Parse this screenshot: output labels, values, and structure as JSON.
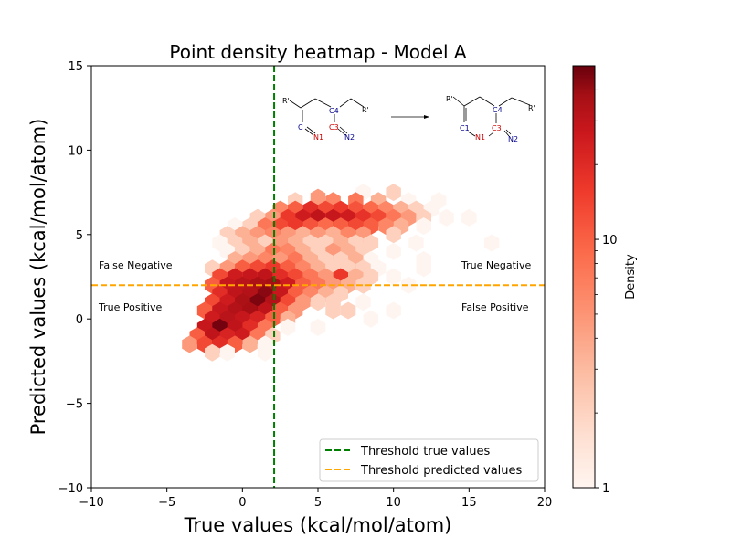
{
  "chart_data": {
    "type": "heatmap",
    "subtype": "hexbin",
    "title": "Point density heatmap  - Model A",
    "xlabel": "True values (kcal/mol/atom)",
    "ylabel": "Predicted values (kcal/mol/atom)",
    "xlim": [
      -10,
      20
    ],
    "ylim": [
      -10,
      15
    ],
    "x_ticks": [
      -10,
      -5,
      0,
      5,
      10,
      15,
      20
    ],
    "y_ticks": [
      -10,
      -5,
      0,
      5,
      10,
      15
    ],
    "x_tick_labels": [
      "−10",
      "−5",
      "0",
      "5",
      "10",
      "15",
      "20"
    ],
    "y_tick_labels": [
      "−10",
      "−5",
      "0",
      "5",
      "10",
      "15"
    ],
    "threshold_true": 2.1,
    "threshold_predicted": 2.0,
    "quadrant_labels": {
      "top_left": "False Negative",
      "bottom_left": "True Positive",
      "top_right": "True Negative",
      "bottom_right": "False Positive"
    },
    "legend": [
      {
        "label": "Threshold true values",
        "color": "#008000",
        "style": "dashed"
      },
      {
        "label": "Threshold predicted values",
        "color": "#FFA500",
        "style": "dashed"
      }
    ],
    "legend_position": "lower-right",
    "colorbar": {
      "label": "Density",
      "scale": "log",
      "min": 1,
      "max": 50,
      "tick_values": [
        1,
        10
      ],
      "tick_labels": [
        "1",
        "10"
      ],
      "colormap": "Reds"
    },
    "hexbins": [
      {
        "x": 8.0,
        "y": 7.5,
        "density": 1
      },
      {
        "x": 10.0,
        "y": 7.5,
        "density": 2
      },
      {
        "x": 11.0,
        "y": 7.0,
        "density": 1
      },
      {
        "x": 13.0,
        "y": 7.0,
        "density": 1
      },
      {
        "x": 3.5,
        "y": 7.0,
        "density": 2
      },
      {
        "x": 5.0,
        "y": 7.2,
        "density": 4
      },
      {
        "x": 6.0,
        "y": 7.0,
        "density": 5
      },
      {
        "x": 7.5,
        "y": 7.0,
        "density": 6
      },
      {
        "x": 9.0,
        "y": 7.0,
        "density": 3
      },
      {
        "x": 2.5,
        "y": 6.5,
        "density": 5
      },
      {
        "x": 3.5,
        "y": 6.5,
        "density": 8
      },
      {
        "x": 4.5,
        "y": 6.5,
        "density": 14
      },
      {
        "x": 5.5,
        "y": 6.5,
        "density": 10
      },
      {
        "x": 6.5,
        "y": 6.5,
        "density": 12
      },
      {
        "x": 7.5,
        "y": 6.5,
        "density": 9
      },
      {
        "x": 8.5,
        "y": 6.5,
        "density": 7
      },
      {
        "x": 9.5,
        "y": 6.5,
        "density": 5
      },
      {
        "x": 10.5,
        "y": 6.5,
        "density": 3
      },
      {
        "x": 11.5,
        "y": 6.5,
        "density": 2
      },
      {
        "x": 12.5,
        "y": 6.5,
        "density": 1
      },
      {
        "x": 1.0,
        "y": 6.0,
        "density": 2
      },
      {
        "x": 2.0,
        "y": 6.0,
        "density": 4
      },
      {
        "x": 3.0,
        "y": 6.0,
        "density": 12
      },
      {
        "x": 4.0,
        "y": 6.0,
        "density": 18
      },
      {
        "x": 5.0,
        "y": 6.0,
        "density": 22
      },
      {
        "x": 6.0,
        "y": 6.0,
        "density": 20
      },
      {
        "x": 7.0,
        "y": 6.0,
        "density": 18
      },
      {
        "x": 8.0,
        "y": 6.0,
        "density": 13
      },
      {
        "x": 9.0,
        "y": 6.0,
        "density": 10
      },
      {
        "x": 10.0,
        "y": 6.0,
        "density": 6
      },
      {
        "x": 11.0,
        "y": 6.0,
        "density": 4
      },
      {
        "x": 12.0,
        "y": 6.0,
        "density": 2
      },
      {
        "x": 13.5,
        "y": 6.0,
        "density": 1
      },
      {
        "x": 15.0,
        "y": 6.0,
        "density": 1
      },
      {
        "x": -0.5,
        "y": 5.5,
        "density": 1
      },
      {
        "x": 0.5,
        "y": 5.5,
        "density": 2
      },
      {
        "x": 1.5,
        "y": 5.5,
        "density": 6
      },
      {
        "x": 2.5,
        "y": 5.5,
        "density": 10
      },
      {
        "x": 3.5,
        "y": 5.5,
        "density": 12
      },
      {
        "x": 4.5,
        "y": 5.5,
        "density": 9
      },
      {
        "x": 5.5,
        "y": 5.5,
        "density": 7
      },
      {
        "x": 6.5,
        "y": 5.5,
        "density": 8
      },
      {
        "x": 7.5,
        "y": 5.5,
        "density": 10
      },
      {
        "x": 8.5,
        "y": 5.5,
        "density": 8
      },
      {
        "x": 9.5,
        "y": 5.5,
        "density": 5
      },
      {
        "x": 10.5,
        "y": 5.5,
        "density": 3
      },
      {
        "x": 12.0,
        "y": 5.5,
        "density": 1
      },
      {
        "x": -1.0,
        "y": 5.0,
        "density": 2
      },
      {
        "x": 0.0,
        "y": 5.0,
        "density": 3
      },
      {
        "x": 1.0,
        "y": 5.0,
        "density": 4
      },
      {
        "x": 2.0,
        "y": 5.0,
        "density": 5
      },
      {
        "x": 3.0,
        "y": 5.0,
        "density": 4
      },
      {
        "x": 4.0,
        "y": 5.0,
        "density": 3
      },
      {
        "x": 5.0,
        "y": 5.0,
        "density": 4
      },
      {
        "x": 6.0,
        "y": 5.0,
        "density": 3
      },
      {
        "x": 7.0,
        "y": 5.0,
        "density": 5
      },
      {
        "x": 8.0,
        "y": 5.0,
        "density": 4
      },
      {
        "x": 10.0,
        "y": 5.0,
        "density": 2
      },
      {
        "x": -1.5,
        "y": 4.5,
        "density": 1
      },
      {
        "x": -0.5,
        "y": 4.5,
        "density": 2
      },
      {
        "x": 0.5,
        "y": 4.5,
        "density": 3
      },
      {
        "x": 1.5,
        "y": 4.5,
        "density": 2
      },
      {
        "x": 2.5,
        "y": 4.5,
        "density": 4
      },
      {
        "x": 3.5,
        "y": 4.5,
        "density": 3
      },
      {
        "x": 4.5,
        "y": 4.5,
        "density": 2
      },
      {
        "x": 5.5,
        "y": 4.5,
        "density": 2
      },
      {
        "x": 6.5,
        "y": 4.5,
        "density": 3
      },
      {
        "x": 7.5,
        "y": 4.5,
        "density": 2
      },
      {
        "x": 8.5,
        "y": 4.5,
        "density": 2
      },
      {
        "x": 11.5,
        "y": 4.5,
        "density": 1
      },
      {
        "x": 16.5,
        "y": 4.5,
        "density": 1
      },
      {
        "x": -1.0,
        "y": 4.0,
        "density": 1
      },
      {
        "x": 0.0,
        "y": 4.0,
        "density": 2
      },
      {
        "x": 1.0,
        "y": 4.0,
        "density": 3
      },
      {
        "x": 2.0,
        "y": 4.0,
        "density": 6
      },
      {
        "x": 3.0,
        "y": 4.0,
        "density": 5
      },
      {
        "x": 4.0,
        "y": 4.0,
        "density": 3
      },
      {
        "x": 5.0,
        "y": 4.0,
        "density": 2
      },
      {
        "x": 6.0,
        "y": 4.0,
        "density": 4
      },
      {
        "x": 7.0,
        "y": 4.0,
        "density": 3
      },
      {
        "x": 8.0,
        "y": 4.0,
        "density": 2
      },
      {
        "x": 10.0,
        "y": 4.0,
        "density": 1
      },
      {
        "x": -0.5,
        "y": 3.5,
        "density": 3
      },
      {
        "x": 0.5,
        "y": 3.5,
        "density": 4
      },
      {
        "x": 1.5,
        "y": 3.5,
        "density": 5
      },
      {
        "x": 2.5,
        "y": 3.5,
        "density": 4
      },
      {
        "x": 3.5,
        "y": 3.5,
        "density": 6
      },
      {
        "x": 4.5,
        "y": 3.5,
        "density": 3
      },
      {
        "x": 5.5,
        "y": 3.5,
        "density": 2
      },
      {
        "x": 6.5,
        "y": 3.5,
        "density": 2
      },
      {
        "x": 7.5,
        "y": 3.5,
        "density": 3
      },
      {
        "x": 8.5,
        "y": 3.5,
        "density": 1
      },
      {
        "x": 12.0,
        "y": 3.5,
        "density": 1
      },
      {
        "x": -2.0,
        "y": 3.0,
        "density": 2
      },
      {
        "x": -1.0,
        "y": 3.0,
        "density": 4
      },
      {
        "x": 0.0,
        "y": 3.0,
        "density": 8
      },
      {
        "x": 1.0,
        "y": 3.0,
        "density": 10
      },
      {
        "x": 2.0,
        "y": 3.0,
        "density": 12
      },
      {
        "x": 3.0,
        "y": 3.0,
        "density": 8
      },
      {
        "x": 4.0,
        "y": 3.0,
        "density": 5
      },
      {
        "x": 5.0,
        "y": 3.0,
        "density": 3
      },
      {
        "x": 6.0,
        "y": 3.0,
        "density": 2
      },
      {
        "x": 7.0,
        "y": 3.0,
        "density": 2
      },
      {
        "x": 8.0,
        "y": 3.0,
        "density": 2
      },
      {
        "x": 9.0,
        "y": 3.0,
        "density": 1
      },
      {
        "x": 12.0,
        "y": 3.0,
        "density": 1
      },
      {
        "x": -1.5,
        "y": 2.5,
        "density": 10
      },
      {
        "x": -0.5,
        "y": 2.5,
        "density": 18
      },
      {
        "x": 0.5,
        "y": 2.5,
        "density": 20
      },
      {
        "x": 1.5,
        "y": 2.5,
        "density": 22
      },
      {
        "x": 2.5,
        "y": 2.5,
        "density": 14
      },
      {
        "x": 3.5,
        "y": 2.5,
        "density": 10
      },
      {
        "x": 4.5,
        "y": 2.5,
        "density": 6
      },
      {
        "x": 5.5,
        "y": 2.5,
        "density": 4
      },
      {
        "x": 6.5,
        "y": 2.5,
        "density": 12
      },
      {
        "x": 7.5,
        "y": 2.5,
        "density": 3
      },
      {
        "x": 8.5,
        "y": 2.5,
        "density": 2
      },
      {
        "x": 10.0,
        "y": 2.5,
        "density": 1
      },
      {
        "x": -2.0,
        "y": 2.0,
        "density": 8
      },
      {
        "x": -1.0,
        "y": 2.0,
        "density": 20
      },
      {
        "x": 0.0,
        "y": 2.0,
        "density": 24
      },
      {
        "x": 1.0,
        "y": 2.0,
        "density": 28
      },
      {
        "x": 2.0,
        "y": 2.0,
        "density": 30
      },
      {
        "x": 3.0,
        "y": 2.0,
        "density": 18
      },
      {
        "x": 4.0,
        "y": 2.0,
        "density": 8
      },
      {
        "x": 5.0,
        "y": 2.0,
        "density": 6
      },
      {
        "x": 6.0,
        "y": 2.0,
        "density": 4
      },
      {
        "x": 7.0,
        "y": 2.0,
        "density": 3
      },
      {
        "x": 8.0,
        "y": 2.0,
        "density": 2
      },
      {
        "x": 11.0,
        "y": 2.0,
        "density": 1
      },
      {
        "x": -1.5,
        "y": 1.5,
        "density": 14
      },
      {
        "x": -0.5,
        "y": 1.5,
        "density": 22
      },
      {
        "x": 0.5,
        "y": 1.5,
        "density": 26
      },
      {
        "x": 1.5,
        "y": 1.5,
        "density": 38
      },
      {
        "x": 2.5,
        "y": 1.5,
        "density": 20
      },
      {
        "x": 3.5,
        "y": 1.5,
        "density": 8
      },
      {
        "x": 4.5,
        "y": 1.5,
        "density": 5
      },
      {
        "x": 5.5,
        "y": 1.5,
        "density": 3
      },
      {
        "x": 6.5,
        "y": 1.5,
        "density": 2
      },
      {
        "x": -2.0,
        "y": 1.0,
        "density": 10
      },
      {
        "x": -1.0,
        "y": 1.0,
        "density": 18
      },
      {
        "x": 0.0,
        "y": 1.0,
        "density": 28
      },
      {
        "x": 1.0,
        "y": 1.0,
        "density": 42
      },
      {
        "x": 2.0,
        "y": 1.0,
        "density": 26
      },
      {
        "x": 3.0,
        "y": 1.0,
        "density": 10
      },
      {
        "x": 4.0,
        "y": 1.0,
        "density": 4
      },
      {
        "x": 5.0,
        "y": 1.0,
        "density": 2
      },
      {
        "x": 6.0,
        "y": 1.0,
        "density": 2
      },
      {
        "x": 8.0,
        "y": 1.0,
        "density": 1
      },
      {
        "x": -2.5,
        "y": 0.5,
        "density": 8
      },
      {
        "x": -1.5,
        "y": 0.5,
        "density": 20
      },
      {
        "x": -0.5,
        "y": 0.5,
        "density": 26
      },
      {
        "x": 0.5,
        "y": 0.5,
        "density": 30
      },
      {
        "x": 1.5,
        "y": 0.5,
        "density": 22
      },
      {
        "x": 2.5,
        "y": 0.5,
        "density": 8
      },
      {
        "x": 3.5,
        "y": 0.5,
        "density": 4
      },
      {
        "x": 6.0,
        "y": 0.5,
        "density": 2
      },
      {
        "x": 7.0,
        "y": 0.5,
        "density": 2
      },
      {
        "x": 10.0,
        "y": 0.5,
        "density": 1
      },
      {
        "x": -2.0,
        "y": 0.0,
        "density": 18
      },
      {
        "x": -1.0,
        "y": 0.0,
        "density": 24
      },
      {
        "x": 0.0,
        "y": 0.0,
        "density": 20
      },
      {
        "x": 1.0,
        "y": 0.0,
        "density": 16
      },
      {
        "x": 2.0,
        "y": 0.0,
        "density": 8
      },
      {
        "x": 3.0,
        "y": 0.0,
        "density": 3
      },
      {
        "x": 8.5,
        "y": 0.0,
        "density": 1
      },
      {
        "x": -2.5,
        "y": -0.5,
        "density": 20
      },
      {
        "x": -1.5,
        "y": -0.5,
        "density": 45
      },
      {
        "x": -0.5,
        "y": -0.5,
        "density": 22
      },
      {
        "x": 0.5,
        "y": -0.5,
        "density": 14
      },
      {
        "x": 1.5,
        "y": -0.5,
        "density": 6
      },
      {
        "x": 3.0,
        "y": -0.5,
        "density": 1
      },
      {
        "x": 5.0,
        "y": -0.5,
        "density": 1
      },
      {
        "x": -3.0,
        "y": -1.0,
        "density": 8
      },
      {
        "x": -2.0,
        "y": -1.0,
        "density": 22
      },
      {
        "x": -1.0,
        "y": -1.0,
        "density": 16
      },
      {
        "x": 0.0,
        "y": -1.0,
        "density": 18
      },
      {
        "x": 1.0,
        "y": -1.0,
        "density": 6
      },
      {
        "x": 2.0,
        "y": -1.0,
        "density": 2
      },
      {
        "x": -3.5,
        "y": -1.5,
        "density": 4
      },
      {
        "x": -2.5,
        "y": -1.5,
        "density": 10
      },
      {
        "x": -1.5,
        "y": -1.5,
        "density": 14
      },
      {
        "x": -0.5,
        "y": -1.5,
        "density": 8
      },
      {
        "x": 0.5,
        "y": -1.5,
        "density": 3
      },
      {
        "x": 1.5,
        "y": -1.5,
        "density": 1
      },
      {
        "x": -2.0,
        "y": -2.0,
        "density": 2
      },
      {
        "x": -1.0,
        "y": -2.0,
        "density": 1
      },
      {
        "x": 1.5,
        "y": -2.0,
        "density": 1
      }
    ],
    "inset_reaction": {
      "reactant_atom_labels": [
        "R'",
        "R'",
        "C4",
        "C",
        "N1",
        "C3",
        "N2"
      ],
      "product_atom_labels": [
        "R'",
        "R'",
        "C4",
        "C1",
        "C3",
        "N1",
        "N2"
      ]
    }
  }
}
